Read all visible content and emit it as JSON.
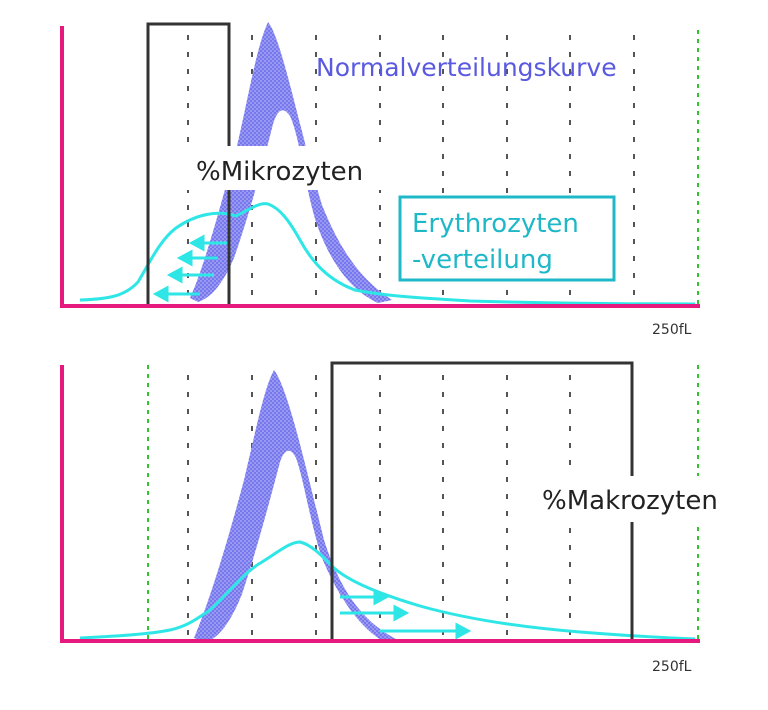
{
  "colors": {
    "axis": "#e6197e",
    "gridline": "#555555",
    "green_guide": "#2ec52e",
    "normal_curve": "#6a6ae6",
    "erythrocyte_curve": "#2ee6e6",
    "box": "#333333",
    "label_blue": "#5a5ae0",
    "label_cyan": "#1fb8c8",
    "label_dark": "#222222"
  },
  "top_panel": {
    "normal_curve_label": "Normalverteilungskurve",
    "micro_label": "%Mikrozyten",
    "erythro_label_line1": "Erythrozyten",
    "erythro_label_line2": "-verteilung",
    "axis_end_label": "250fL"
  },
  "bottom_panel": {
    "macro_label": "%Makrozyten",
    "axis_end_label": "250fL"
  }
}
